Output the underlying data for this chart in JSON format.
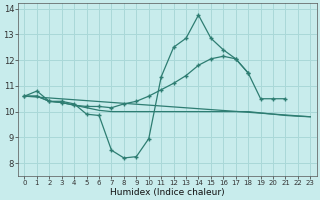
{
  "title": "",
  "xlabel": "Humidex (Indice chaleur)",
  "ylabel": "",
  "background_color": "#c8ecec",
  "grid_color": "#aad8d8",
  "line_color": "#2e7d72",
  "xlim": [
    -0.5,
    23.5
  ],
  "ylim": [
    7.5,
    14.2
  ],
  "xticks": [
    0,
    1,
    2,
    3,
    4,
    5,
    6,
    7,
    8,
    9,
    10,
    11,
    12,
    13,
    14,
    15,
    16,
    17,
    18,
    19,
    20,
    21,
    22,
    23
  ],
  "yticks": [
    8,
    9,
    10,
    11,
    12,
    13,
    14
  ],
  "series": [
    {
      "x": [
        0,
        1,
        2,
        3,
        4,
        5,
        6,
        7,
        8,
        9,
        10,
        11,
        12,
        13,
        14,
        15,
        16,
        17,
        18,
        19,
        20,
        21,
        22,
        23
      ],
      "y": [
        10.6,
        10.8,
        10.4,
        10.4,
        10.3,
        9.9,
        9.85,
        8.5,
        8.2,
        8.25,
        8.95,
        11.35,
        12.5,
        12.85,
        13.75,
        12.85,
        12.4,
        12.05,
        11.5,
        null,
        null,
        null,
        null,
        null
      ],
      "has_markers": true
    },
    {
      "x": [
        0,
        1,
        2,
        3,
        4,
        5,
        6,
        7,
        8,
        9,
        10,
        11,
        12,
        13,
        14,
        15,
        16,
        17,
        18,
        19,
        20,
        21,
        22,
        23
      ],
      "y": [
        10.6,
        10.6,
        10.4,
        10.35,
        10.25,
        10.15,
        10.05,
        10.0,
        10.0,
        10.0,
        10.0,
        10.0,
        10.0,
        10.0,
        10.0,
        10.0,
        10.0,
        10.0,
        10.0,
        9.95,
        9.9,
        9.85,
        9.82,
        9.8
      ],
      "has_markers": false
    },
    {
      "x": [
        0,
        1,
        2,
        3,
        4,
        5,
        6,
        7,
        8,
        9,
        10,
        11,
        12,
        13,
        14,
        15,
        16,
        17,
        18,
        19,
        20,
        21,
        22,
        23
      ],
      "y": [
        10.6,
        10.6,
        10.4,
        10.35,
        10.25,
        10.2,
        10.2,
        10.15,
        10.3,
        10.4,
        10.6,
        10.85,
        11.1,
        11.4,
        11.8,
        12.05,
        12.15,
        12.05,
        11.5,
        10.5,
        10.5,
        10.5,
        null,
        null
      ],
      "has_markers": true
    },
    {
      "x": [
        0,
        23
      ],
      "y": [
        10.6,
        9.8
      ],
      "has_markers": false
    }
  ]
}
